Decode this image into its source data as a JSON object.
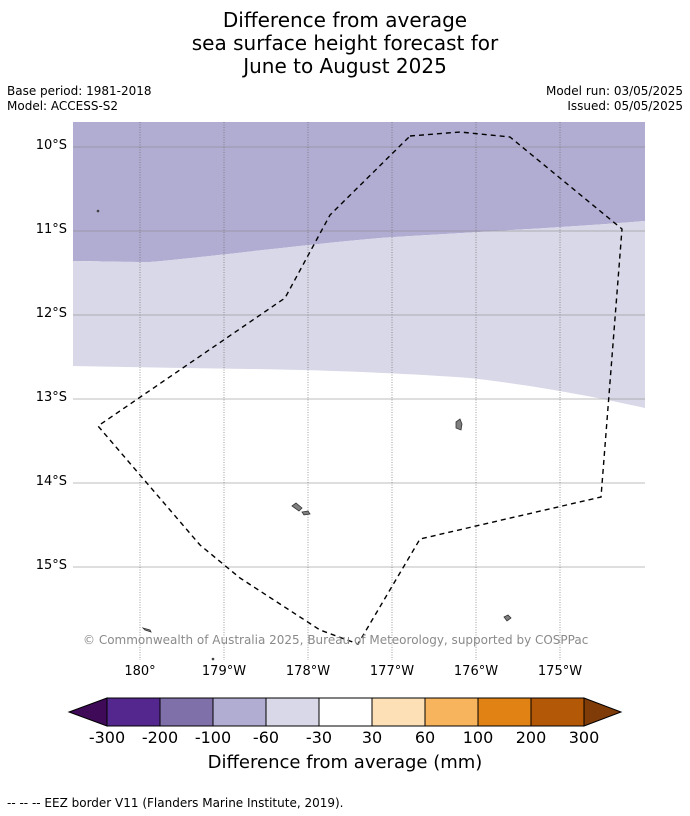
{
  "title": {
    "line1": "Difference from average",
    "line2": "sea surface height forecast for",
    "line3": "June to August 2025"
  },
  "meta": {
    "base_period": "Base period: 1981-2018",
    "model": "Model: ACCESS-S2",
    "model_run": "Model run: 03/05/2025",
    "issued": "Issued: 05/05/2025"
  },
  "map": {
    "lat_labels": [
      "10°S",
      "11°S",
      "12°S",
      "13°S",
      "14°S",
      "15°S"
    ],
    "lon_labels": [
      "180°",
      "179°W",
      "178°W",
      "177°W",
      "176°W",
      "175°W"
    ],
    "copyright": "© Commonwealth of Australia 2025, Bureau of Meteorology, supported by COSPPac",
    "colors": {
      "band_minus_100_to_minus_60": "#b1acd2",
      "band_minus_60_to_minus_30": "#d8d8e8",
      "band_minus_30_to_30": "#ffffff",
      "land": "#7f7f7f",
      "eez_border": "#000000"
    }
  },
  "colorbar": {
    "ticks": [
      "-300",
      "-200",
      "-100",
      "-60",
      "-30",
      "30",
      "60",
      "100",
      "200",
      "300"
    ],
    "colors": [
      "#3f0a57",
      "#54278f",
      "#8070aa",
      "#b1acd2",
      "#d8d8e8",
      "#ffffff",
      "#fde0b6",
      "#f7b45c",
      "#e08214",
      "#b35806",
      "#7f3b08"
    ],
    "label": "Difference from average (mm)"
  },
  "legend": {
    "eez": "--  --  -- EEZ border V11 (Flanders Marine Institute, 2019)."
  }
}
